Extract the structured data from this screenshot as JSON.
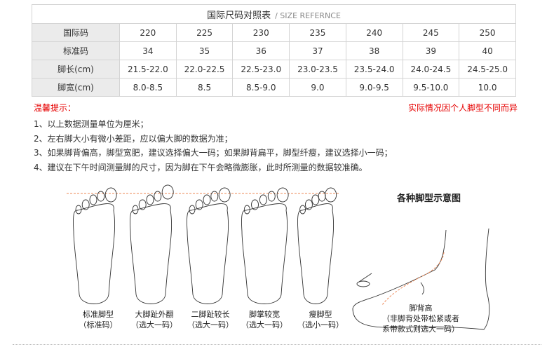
{
  "table": {
    "title": "国际尺码对照表",
    "subtitle": "/ SIZE REFERNCE",
    "rows": [
      {
        "label": "国际码",
        "values": [
          "220",
          "225",
          "230",
          "235",
          "240",
          "245",
          "250"
        ]
      },
      {
        "label": "标准码",
        "values": [
          "34",
          "35",
          "36",
          "37",
          "38",
          "39",
          "40"
        ]
      },
      {
        "label": "脚长(cm)",
        "values": [
          "21.5-22.0",
          "22.0-22.5",
          "22.5-23.0",
          "23.0-23.5",
          "23.5-24.0",
          "24.0-24.5",
          "24.5-25.0"
        ]
      },
      {
        "label": "脚宽(cm)",
        "values": [
          "8.0-8.5",
          "8.5",
          "8.5-9.0",
          "9.0",
          "9.0-9.5",
          "9.5-10.0",
          "10.0"
        ]
      }
    ]
  },
  "tips_label": "温馨提示：",
  "note_right": "实际情况因个人脚型不同而异",
  "notes": [
    "1、以上数据测量单位为厘米；",
    "2、左右脚大小有微小差距，应以偏大脚的数据为准；",
    "3、如果脚背偏高，脚型宽肥，建议选择偏大一码；如果脚背扁平，脚型纤瘦，建议选择小一码；",
    "4、建议在下午时间测量脚的尺寸，因为脚在下午会略微膨胀，此时所测量的数据较准确。"
  ],
  "diagram_title": "各种脚型示意图",
  "feet": [
    {
      "name": "标准脚型",
      "advice": "（标准码）"
    },
    {
      "name": "大脚趾外翻",
      "advice": "（选大一码）"
    },
    {
      "name": "二脚趾较长",
      "advice": "（选大一码）"
    },
    {
      "name": "脚掌较宽",
      "advice": "（选大一码）"
    },
    {
      "name": "瘦脚型",
      "advice": "（选小一码）"
    }
  ],
  "side_foot": {
    "name": "脚背高",
    "advice_1": "（非脚背处带松紧或者",
    "advice_2": "系带款式则选大一码）"
  },
  "colors": {
    "accent": "#e60000",
    "header_bg": "#ebebeb"
  }
}
